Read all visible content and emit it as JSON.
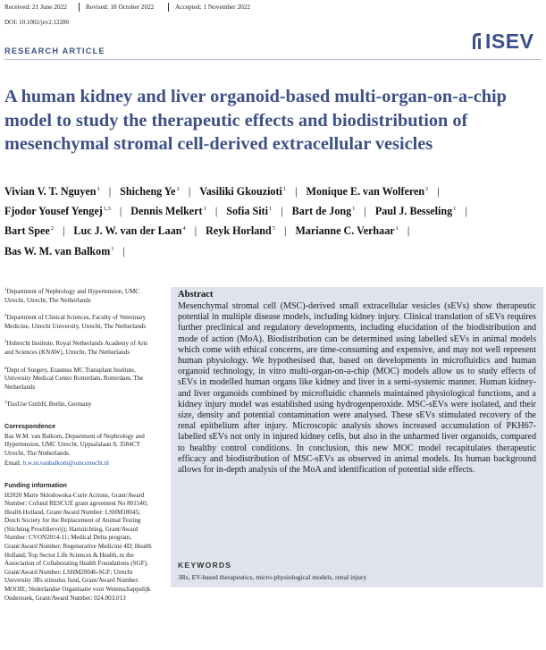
{
  "header": {
    "received": "Received: 21 June 2022",
    "revised": "Revised: 18 October 2022",
    "accepted": "Accepted: 1 November 2022",
    "doi": "DOI: 10.1002/jev2.12280"
  },
  "logo": {
    "text": "ISEV",
    "color": "#3b4f8b"
  },
  "section": "RESEARCH ARTICLE",
  "title": "A human kidney and liver organoid-based multi-organ-on-a-chip model to study the therapeutic effects and biodistribution of mesenchymal stromal cell-derived extracellular vesicles",
  "authors": [
    [
      {
        "name": "Vivian V. T. Nguyen",
        "sup": "1"
      },
      {
        "name": "Shicheng Ye",
        "sup": "2"
      },
      {
        "name": "Vasiliki Gkouzioti",
        "sup": "1"
      },
      {
        "name": "Monique E. van Wolferen",
        "sup": "2"
      }
    ],
    [
      {
        "name": "Fjodor Yousef Yengej",
        "sup": "1,3"
      },
      {
        "name": "Dennis Melkert",
        "sup": "1"
      },
      {
        "name": "Sofia Siti",
        "sup": "1"
      },
      {
        "name": "Bart de Jong",
        "sup": "1"
      },
      {
        "name": "Paul J. Besseling",
        "sup": "1"
      }
    ],
    [
      {
        "name": "Bart Spee",
        "sup": "2"
      },
      {
        "name": "Luc J. W. van der Laan",
        "sup": "4"
      },
      {
        "name": "Reyk Horland",
        "sup": "5"
      },
      {
        "name": "Marianne C. Verhaar",
        "sup": "1"
      }
    ],
    [
      {
        "name": "Bas W. M. van Balkom",
        "sup": "1"
      }
    ]
  ],
  "affiliations": [
    {
      "num": "1",
      "text": "Department of Nephrology and Hypertension, UMC Utrecht, Utrecht, The Netherlands"
    },
    {
      "num": "2",
      "text": "Department of Clinical Sciences, Faculty of Veterinary Medicine, Utrecht University, Utrecht, The Netherlands"
    },
    {
      "num": "3",
      "text": "Hubrecht Institute, Royal Netherlands Academy of Arts and Sciences (KNAW), Utrecht, The Netherlands"
    },
    {
      "num": "4",
      "text": "Dept of Surgery, Erasmus MC Transplant Institute, University Medical Center Rotterdam, Rotterdam, The Netherlands"
    },
    {
      "num": "5",
      "text": "TissUse GmbH, Berlin, Germany"
    }
  ],
  "correspondence": {
    "heading": "Correspondence",
    "text": "Bas W.M. van Balkom, Department of Nephrology and Hypertension, UMC Utrecht, Uppsalalaan 8, 3584CT Utrecht, The Netherlands.",
    "email_label": "Email:",
    "email": "b.w.m.vanbalkom@umcutrecht.nl"
  },
  "funding": {
    "heading": "Funding information",
    "text": "H2020 Marie Sklodowska-Curie Actions, Grant/Award Number: Cofund RESCUE grant agreement No 801540; Health Holland, Grant/Award Number: LSHM18045; Dutch Society for the Replacement of Animal Testing (Stichting Proefdiervrij); Hartstichting, Grant/Award Number: CVON2014-11; Medical Delta program, Grant/Award Number: Regenerative Medicine 4D; Health Holland, Top Sector Life Sciences & Health, to the Association of Collaborating Health Foundations (SGF), Grant/Award Number: LSHM20046-SGF; Utrecht University 3Rs stimulus fund, Grant/Award Number: MOOIE; Nederlandse Organisatie voor Wetenschappelijk Onderzoek, Grant/Award Number: 024.003.013"
  },
  "abstract": {
    "heading": "Abstract",
    "text": "Mesenchymal stromal cell (MSC)-derived small extracellular vesicles (sEVs) show therapeutic potential in multiple disease models, including kidney injury. Clinical translation of sEVs requires further preclinical and regulatory developments, including elucidation of the biodistribution and mode of action (MoA). Biodistribution can be determined using labelled sEVs in animal models which come with ethical concerns, are time-consuming and expensive, and may not well represent human physiology. We hypothesised that, based on developments in microfluidics and human organoid technology, in vitro multi-organ-on-a-chip (MOC) models allow us to study effects of sEVs in modelled human organs like kidney and liver in a semi-systemic manner. Human kidney- and liver organoids combined by microfluidic channels maintained physiological functions, and a kidney injury model was established using hydrogenperoxide. MSC-sEVs were isolated, and their size, density and potential contamination were analysed. These sEVs stimulated recovery of the renal epithelium after injury. Microscopic analysis shows increased accumulation of PKH67-labelled sEVs not only in injured kidney cells, but also in the unharmed liver organoids, compared to healthy control conditions. In conclusion, this new MOC model recapitulates therapeutic efficacy and biodistribution of MSC-sEVs as observed in animal models. Its human background allows for in-depth analysis of the MoA and identification of potential side effects."
  },
  "keywords": {
    "heading": "KEYWORDS",
    "text": "3Rs, EV-based therapeutics, micro-physiological models, renal injury"
  }
}
